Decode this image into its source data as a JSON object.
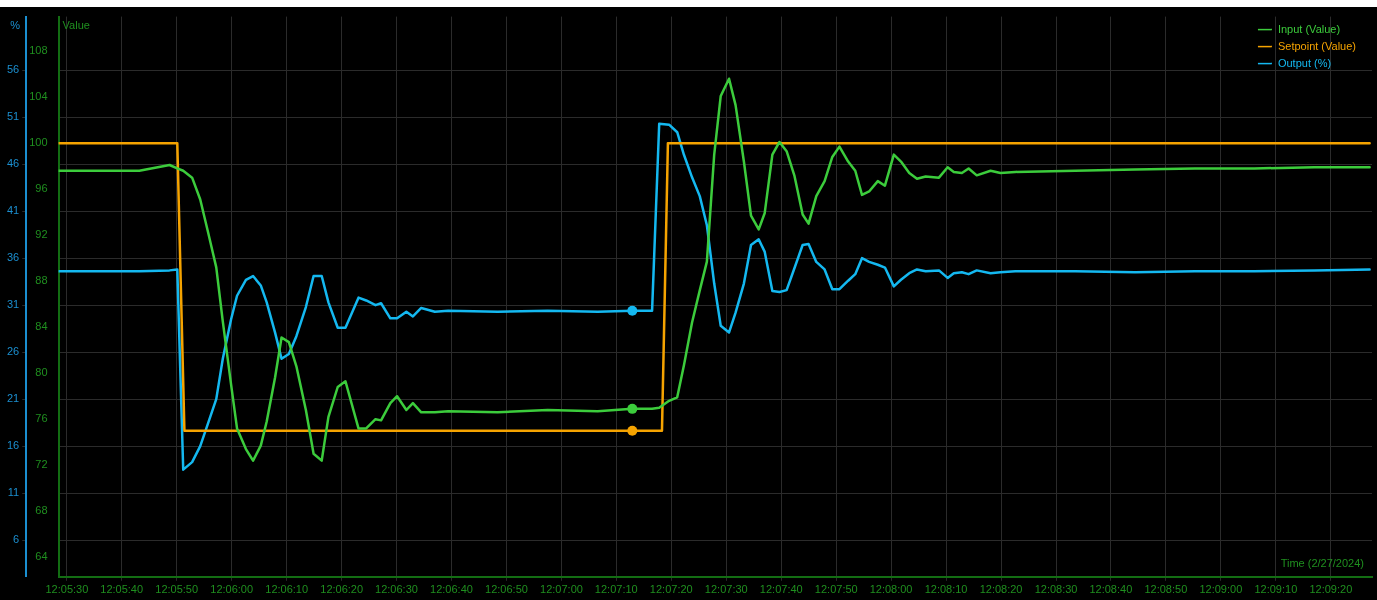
{
  "chart_data": {
    "type": "line",
    "xlabel": "Time (2/27/2024)",
    "ylabel": "Value",
    "y2label": "%",
    "legend": "top right",
    "grid": true,
    "xlim": [
      12.09125,
      12.15764
    ],
    "xticks": [
      {
        "value": 12.09167,
        "label": "12:05:30"
      },
      {
        "value": 12.09444,
        "label": "12:05:40"
      },
      {
        "value": 12.09722,
        "label": "12:05:50"
      },
      {
        "value": 12.1,
        "label": "12:06:00"
      },
      {
        "value": 12.10278,
        "label": "12:06:10"
      },
      {
        "value": 12.10556,
        "label": "12:06:20"
      },
      {
        "value": 12.10833,
        "label": "12:06:30"
      },
      {
        "value": 12.11111,
        "label": "12:06:40"
      },
      {
        "value": 12.11389,
        "label": "12:06:50"
      },
      {
        "value": 12.11667,
        "label": "12:07:00"
      },
      {
        "value": 12.11944,
        "label": "12:07:10"
      },
      {
        "value": 12.12222,
        "label": "12:07:20"
      },
      {
        "value": 12.125,
        "label": "12:07:30"
      },
      {
        "value": 12.12778,
        "label": "12:07:40"
      },
      {
        "value": 12.13056,
        "label": "12:07:50"
      },
      {
        "value": 12.13333,
        "label": "12:08:00"
      },
      {
        "value": 12.13611,
        "label": "12:08:10"
      },
      {
        "value": 12.13889,
        "label": "12:08:20"
      },
      {
        "value": 12.14167,
        "label": "12:08:30"
      },
      {
        "value": 12.14444,
        "label": "12:08:40"
      },
      {
        "value": 12.14722,
        "label": "12:08:50"
      },
      {
        "value": 12.15,
        "label": "12:09:00"
      },
      {
        "value": 12.15278,
        "label": "12:09:10"
      },
      {
        "value": 12.15556,
        "label": "12:09:20"
      }
    ],
    "ylim": [
      62.3,
      111.0
    ],
    "yticks": [
      64,
      68,
      72,
      76,
      80,
      84,
      88,
      92,
      96,
      100,
      104,
      108
    ],
    "y2lim": [
      2.1,
      61.7
    ],
    "y2ticks": [
      6,
      11,
      16,
      21,
      26,
      31,
      36,
      41,
      46,
      51,
      56
    ],
    "x": [
      12.09125,
      12.09333,
      12.09533,
      12.09686,
      12.09725,
      12.09755,
      12.098,
      12.09841,
      12.0988,
      12.09922,
      12.09955,
      12.09997,
      12.10027,
      12.10072,
      12.10108,
      12.10147,
      12.10177,
      12.10219,
      12.10252,
      12.10289,
      12.10327,
      12.10375,
      12.10414,
      12.10455,
      12.10489,
      12.10536,
      12.10575,
      12.10641,
      12.1068,
      12.10727,
      12.10755,
      12.10802,
      12.10836,
      12.10883,
      12.10916,
      12.10958,
      12.11027,
      12.11094,
      12.11344,
      12.11597,
      12.1185,
      12.12025,
      12.12125,
      12.12161,
      12.12211,
      12.12252,
      12.12286,
      12.12327,
      12.12366,
      12.12402,
      12.12439,
      12.12472,
      12.12514,
      12.12547,
      12.12589,
      12.12625,
      12.12664,
      12.12694,
      12.12733,
      12.12769,
      12.12805,
      12.12844,
      12.12886,
      12.12916,
      12.12955,
      12.12997,
      12.13036,
      12.13072,
      12.13116,
      12.13152,
      12.13186,
      12.13222,
      12.13266,
      12.13302,
      12.13347,
      12.13383,
      12.13425,
      12.13464,
      12.13508,
      12.13575,
      12.13619,
      12.1365,
      12.13691,
      12.13725,
      12.13766,
      12.13836,
      12.13886,
      12.13961,
      12.14264,
      12.14566,
      12.14869,
      12.15169,
      12.15472,
      12.15752
    ],
    "series": [
      {
        "name": "Input (Value)",
        "color": "#3ccc3c",
        "values": [
          97.6,
          97.6,
          97.6,
          98.1,
          97.8,
          97.6,
          97.0,
          95.1,
          92.3,
          89.2,
          84.5,
          79.0,
          75.2,
          73.4,
          72.4,
          73.7,
          75.8,
          79.6,
          83.1,
          82.7,
          80.6,
          76.8,
          73.0,
          72.4,
          76.2,
          78.8,
          79.3,
          75.2,
          75.2,
          76.0,
          75.9,
          77.4,
          78.0,
          76.8,
          77.4,
          76.6,
          76.6,
          76.7,
          76.6,
          76.8,
          76.7,
          76.9,
          76.9,
          77.0,
          77.6,
          77.9,
          80.7,
          84.4,
          87.2,
          89.7,
          99.0,
          104.1,
          105.6,
          103.3,
          98.4,
          93.7,
          92.5,
          93.9,
          99.0,
          100.1,
          99.3,
          97.2,
          93.8,
          93.0,
          95.4,
          96.7,
          98.8,
          99.7,
          98.4,
          97.6,
          95.5,
          95.8,
          96.7,
          96.3,
          99.0,
          98.4,
          97.4,
          96.9,
          97.1,
          97.0,
          97.9,
          97.5,
          97.4,
          97.8,
          97.2,
          97.6,
          97.4,
          97.5,
          97.6,
          97.7,
          97.8,
          97.8,
          97.9,
          97.9
        ]
      },
      {
        "name": "Setpoint (Value)",
        "color": "#f5a300",
        "x": [
          12.09125,
          12.09725,
          12.09761,
          12.12175,
          12.12205,
          12.15752
        ],
        "values": [
          100,
          100,
          75,
          75,
          100,
          100
        ]
      },
      {
        "name": "Output (%)",
        "color": "#14b8f0",
        "axis": "y2",
        "values": [
          34.6,
          34.6,
          34.6,
          34.7,
          34.8,
          13.5,
          14.3,
          16.0,
          18.4,
          21.0,
          25.3,
          29.5,
          32.0,
          33.7,
          34.1,
          33.1,
          31.3,
          28.1,
          25.3,
          25.8,
          27.7,
          30.8,
          34.1,
          34.1,
          31.3,
          28.6,
          28.6,
          31.8,
          31.5,
          31.0,
          31.2,
          29.6,
          29.6,
          30.3,
          29.8,
          30.7,
          30.3,
          30.4,
          30.3,
          30.4,
          30.3,
          30.4,
          30.4,
          50.3,
          50.2,
          49.4,
          47.0,
          44.6,
          42.6,
          39.5,
          33.3,
          28.8,
          28.1,
          30.2,
          33.3,
          37.4,
          38.0,
          36.7,
          32.5,
          32.4,
          32.6,
          34.9,
          37.4,
          37.5,
          35.6,
          34.8,
          32.7,
          32.7,
          33.6,
          34.3,
          36.0,
          35.6,
          35.3,
          35.0,
          33.0,
          33.7,
          34.4,
          34.8,
          34.6,
          34.7,
          33.9,
          34.4,
          34.5,
          34.3,
          34.7,
          34.4,
          34.5,
          34.6,
          34.6,
          34.5,
          34.6,
          34.6,
          34.7,
          34.8
        ]
      },
      {
        "type": "scatter",
        "color": "#3ccc3c",
        "marker": "circle",
        "x": [
          12.12025
        ],
        "values": [
          76.9
        ]
      },
      {
        "type": "scatter",
        "color": "#f5a300",
        "marker": "circle",
        "x": [
          12.12025
        ],
        "values": [
          75
        ]
      },
      {
        "type": "scatter",
        "color": "#14b8f0",
        "marker": "circle",
        "axis": "y2",
        "x": [
          12.12025
        ],
        "values": [
          30.4
        ]
      }
    ]
  }
}
